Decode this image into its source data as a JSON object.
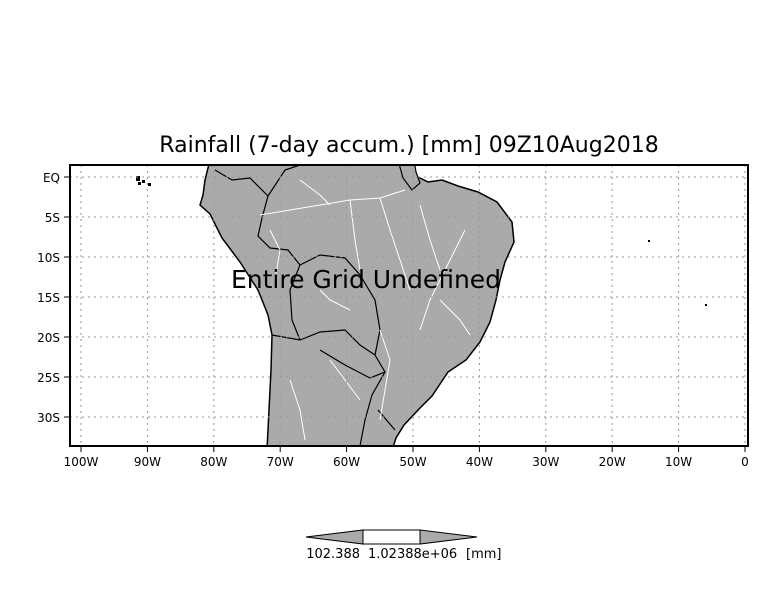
{
  "title": "Rainfall (7-day accum.) [mm] 09Z10Aug2018",
  "overlay_text": "Entire Grid Undefined",
  "axes": {
    "lat_labels": [
      "EQ",
      "5S",
      "10S",
      "15S",
      "20S",
      "25S",
      "30S"
    ],
    "lat_values": [
      0,
      -5,
      -10,
      -15,
      -20,
      -25,
      -30
    ],
    "lon_labels": [
      "100W",
      "90W",
      "80W",
      "70W",
      "60W",
      "50W",
      "40W",
      "30W",
      "20W",
      "10W",
      "0"
    ],
    "lon_values": [
      -100,
      -90,
      -80,
      -70,
      -60,
      -50,
      -40,
      -30,
      -20,
      -10,
      0
    ]
  },
  "colorbar": {
    "labels": [
      "102.388",
      "1.02388e+06"
    ],
    "unit": "[mm]",
    "colors": {
      "ends": "#aaaaaa",
      "middle": "#ffffff"
    }
  },
  "colors": {
    "land": "#aaaaaa",
    "rivers": "#ffffff",
    "borders": "#000000",
    "grid": "#999999"
  }
}
